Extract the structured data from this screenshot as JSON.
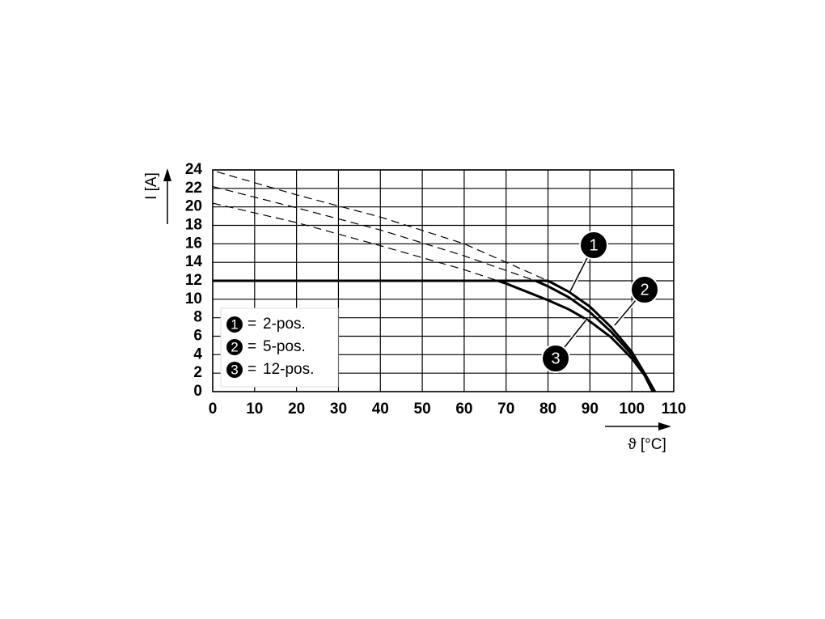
{
  "chart_data": {
    "type": "line",
    "x_label": "ϑ [°C]",
    "y_label": "I [A]",
    "xlim": [
      0,
      110
    ],
    "ylim": [
      0,
      24
    ],
    "xticks": [
      0,
      10,
      20,
      30,
      40,
      50,
      60,
      70,
      80,
      90,
      100,
      110
    ],
    "yticks": [
      0,
      2,
      4,
      6,
      8,
      10,
      12,
      14,
      16,
      18,
      20,
      22,
      24
    ],
    "grid": true,
    "legend_separator": "=",
    "series": [
      {
        "name": "2-pos.",
        "badge": "1",
        "color": "#000000",
        "x": [
          0,
          80,
          85,
          90,
          95,
          100,
          103,
          105.5
        ],
        "values": [
          12,
          12,
          10.8,
          9.2,
          7,
          4.3,
          2,
          0
        ]
      },
      {
        "name": "5-pos.",
        "badge": "2",
        "color": "#000000",
        "x": [
          0,
          77,
          80,
          85,
          90,
          95,
          100,
          103,
          105.5
        ],
        "values": [
          12,
          12,
          11.4,
          10.2,
          8.6,
          6.5,
          4,
          2,
          0
        ]
      },
      {
        "name": "12-pos.",
        "badge": "3",
        "color": "#000000",
        "x": [
          0,
          68,
          70,
          75,
          80,
          85,
          90,
          95,
          100,
          103,
          105
        ],
        "values": [
          12,
          12,
          11.7,
          10.8,
          9.9,
          8.9,
          7.6,
          5.9,
          3.6,
          1.8,
          0
        ]
      }
    ],
    "dashed_series": [
      {
        "color": "#000000",
        "x": [
          1,
          20,
          40,
          60,
          80
        ],
        "values": [
          23.8,
          21.3,
          18.9,
          16,
          12
        ]
      },
      {
        "color": "#000000",
        "x": [
          0,
          20,
          40,
          60,
          77
        ],
        "values": [
          22.2,
          19.9,
          17.5,
          14.7,
          12
        ]
      },
      {
        "color": "#000000",
        "x": [
          0,
          20,
          40,
          60,
          68
        ],
        "values": [
          20.4,
          18.3,
          15.8,
          13.2,
          12
        ]
      }
    ]
  }
}
